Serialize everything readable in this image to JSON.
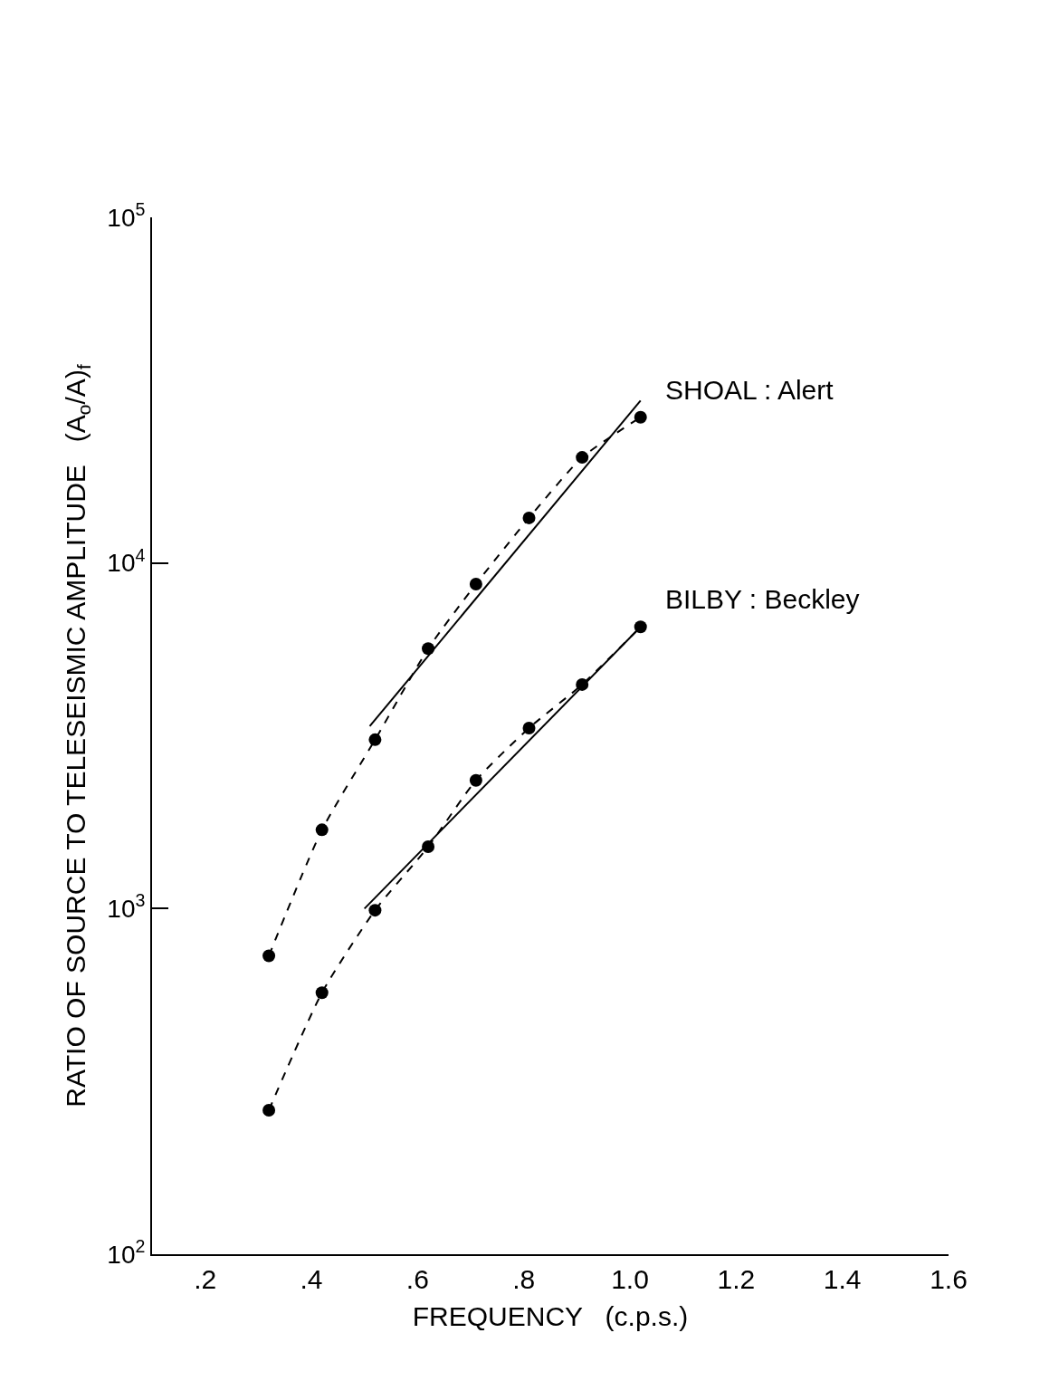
{
  "chart_data": {
    "type": "line",
    "xlabel": "FREQUENCY   (c.p.s.)",
    "ylabel": "RATIO OF SOURCE TO TELESEISMIC AMPLITUDE   (A$_{o}$/A)$_{f}$",
    "log": "y",
    "xlim": [
      0.1,
      1.6
    ],
    "ylim": [
      100,
      100000
    ],
    "xticks": [
      {
        "value": 0.2,
        "label": ".2"
      },
      {
        "value": 0.4,
        "label": ".4"
      },
      {
        "value": 0.6,
        "label": ".6"
      },
      {
        "value": 0.8,
        "label": ".8"
      },
      {
        "value": 1.0,
        "label": "1.0"
      },
      {
        "value": 1.2,
        "label": "1.2"
      },
      {
        "value": 1.4,
        "label": "1.4"
      },
      {
        "value": 1.6,
        "label": "1.6"
      }
    ],
    "yticks": [
      {
        "value": 100,
        "label": "10$^{2}$"
      },
      {
        "value": 1000,
        "label": "10$^{3}$"
      },
      {
        "value": 10000,
        "label": "10$^{4}$"
      },
      {
        "value": 100000,
        "label": "10$^{5}$"
      }
    ],
    "series": [
      {
        "name": "SHOAL : Alert",
        "color": "#000000",
        "line_style": "dashed",
        "marker": "circle",
        "x": [
          0.32,
          0.42,
          0.52,
          0.62,
          0.71,
          0.81,
          0.91,
          1.02
        ],
        "values": [
          730,
          1690,
          3080,
          5650,
          8690,
          13500,
          20200,
          26400
        ]
      },
      {
        "name": "BILBY : Beckley",
        "color": "#000000",
        "line_style": "dashed",
        "marker": "circle",
        "x": [
          0.32,
          0.42,
          0.52,
          0.62,
          0.71,
          0.81,
          0.91,
          1.02
        ],
        "values": [
          261,
          571,
          989,
          1510,
          2350,
          3330,
          4450,
          6530
        ]
      },
      {
        "color": "#000000",
        "line_style": "solid",
        "marker": "none",
        "x": [
          0.51,
          1.02
        ],
        "values": [
          3370,
          29500
        ]
      },
      {
        "color": "#000000",
        "line_style": "solid",
        "marker": "none",
        "x": [
          0.5,
          1.02
        ],
        "values": [
          1000,
          6530
        ]
      }
    ]
  }
}
